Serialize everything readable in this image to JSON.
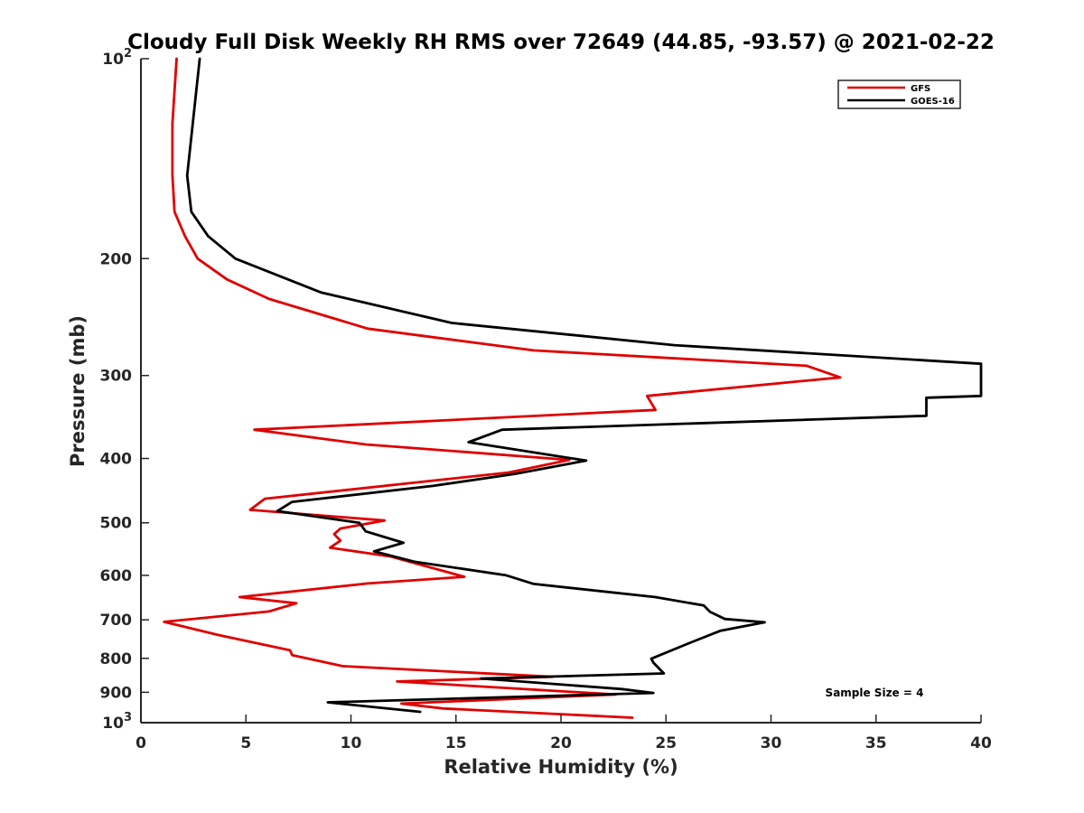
{
  "chart_data": {
    "type": "line",
    "title": "Cloudy Full Disk Weekly RH RMS over 72649 (44.85, -93.57) @ 2021-02-22",
    "xlabel": "Relative Humidity (%)",
    "ylabel": "Pressure (mb)",
    "xlim": [
      0,
      40
    ],
    "ylim": [
      100,
      1000
    ],
    "yscale": "log",
    "y_reversed": true,
    "xticks": [
      0,
      5,
      10,
      15,
      20,
      25,
      30,
      35,
      40
    ],
    "xtick_labels": [
      "0",
      "5",
      "10",
      "15",
      "20",
      "25",
      "30",
      "35",
      "40"
    ],
    "yticks": [
      100,
      200,
      300,
      400,
      500,
      600,
      700,
      800,
      900,
      1000
    ],
    "ytick_labels": [
      {
        "base": "10",
        "exp": "2"
      },
      {
        "base": "200",
        "exp": ""
      },
      {
        "base": "300",
        "exp": ""
      },
      {
        "base": "400",
        "exp": ""
      },
      {
        "base": "500",
        "exp": ""
      },
      {
        "base": "600",
        "exp": ""
      },
      {
        "base": "700",
        "exp": ""
      },
      {
        "base": "800",
        "exp": ""
      },
      {
        "base": "900",
        "exp": ""
      },
      {
        "base": "10",
        "exp": "3"
      }
    ],
    "grid": false,
    "legend_position": "top-right",
    "annotation": "Sample Size = 4",
    "series": [
      {
        "name": "GFS",
        "color": "#e00000",
        "points": [
          [
            1.7,
            100
          ],
          [
            1.5,
            125
          ],
          [
            1.5,
            150
          ],
          [
            1.6,
            170
          ],
          [
            2.1,
            185
          ],
          [
            2.7,
            200
          ],
          [
            4.1,
            215
          ],
          [
            6.1,
            230
          ],
          [
            10.8,
            255
          ],
          [
            18.7,
            275
          ],
          [
            31.7,
            290
          ],
          [
            33.3,
            302
          ],
          [
            24.1,
            322
          ],
          [
            24.5,
            338
          ],
          [
            5.4,
            362
          ],
          [
            10.7,
            381
          ],
          [
            20.4,
            402
          ],
          [
            17.5,
            420
          ],
          [
            5.9,
            460
          ],
          [
            5.2,
            478
          ],
          [
            11.6,
            496
          ],
          [
            9.5,
            510
          ],
          [
            9.2,
            520
          ],
          [
            9.5,
            532
          ],
          [
            9.0,
            545
          ],
          [
            11.9,
            562
          ],
          [
            15.4,
            603
          ],
          [
            10.8,
            617
          ],
          [
            4.7,
            647
          ],
          [
            7.4,
            661
          ],
          [
            6.1,
            680
          ],
          [
            1.1,
            705
          ],
          [
            3.7,
            738
          ],
          [
            7.1,
            778
          ],
          [
            7.2,
            791
          ],
          [
            9.6,
            822
          ],
          [
            19.6,
            853
          ],
          [
            12.2,
            867
          ],
          [
            22.6,
            907
          ],
          [
            12.4,
            936
          ],
          [
            14.4,
            952
          ],
          [
            23.4,
            983
          ]
        ]
      },
      {
        "name": "GOES-16",
        "color": "#000000",
        "points": [
          [
            2.8,
            100
          ],
          [
            2.2,
            150
          ],
          [
            2.4,
            170
          ],
          [
            3.2,
            185
          ],
          [
            4.5,
            200
          ],
          [
            8.6,
            225
          ],
          [
            14.8,
            250
          ],
          [
            25.4,
            270
          ],
          [
            40.0,
            288
          ],
          [
            40.0,
            322
          ],
          [
            37.4,
            324
          ],
          [
            37.4,
            345
          ],
          [
            17.2,
            362
          ],
          [
            15.6,
            378
          ],
          [
            21.2,
            403
          ],
          [
            17.8,
            422
          ],
          [
            13.9,
            440
          ],
          [
            7.2,
            465
          ],
          [
            6.5,
            480
          ],
          [
            10.4,
            500
          ],
          [
            10.7,
            515
          ],
          [
            12.5,
            536
          ],
          [
            11.1,
            552
          ],
          [
            13.0,
            572
          ],
          [
            17.4,
            600
          ],
          [
            18.7,
            618
          ],
          [
            24.5,
            647
          ],
          [
            26.8,
            666
          ],
          [
            27.1,
            681
          ],
          [
            27.8,
            698
          ],
          [
            29.7,
            706
          ],
          [
            27.6,
            727
          ],
          [
            26.1,
            759
          ],
          [
            24.3,
            801
          ],
          [
            24.4,
            812
          ],
          [
            24.9,
            843
          ],
          [
            16.2,
            858
          ],
          [
            22.9,
            890
          ],
          [
            24.4,
            902
          ],
          [
            8.9,
            932
          ],
          [
            13.3,
            963
          ]
        ]
      }
    ]
  }
}
